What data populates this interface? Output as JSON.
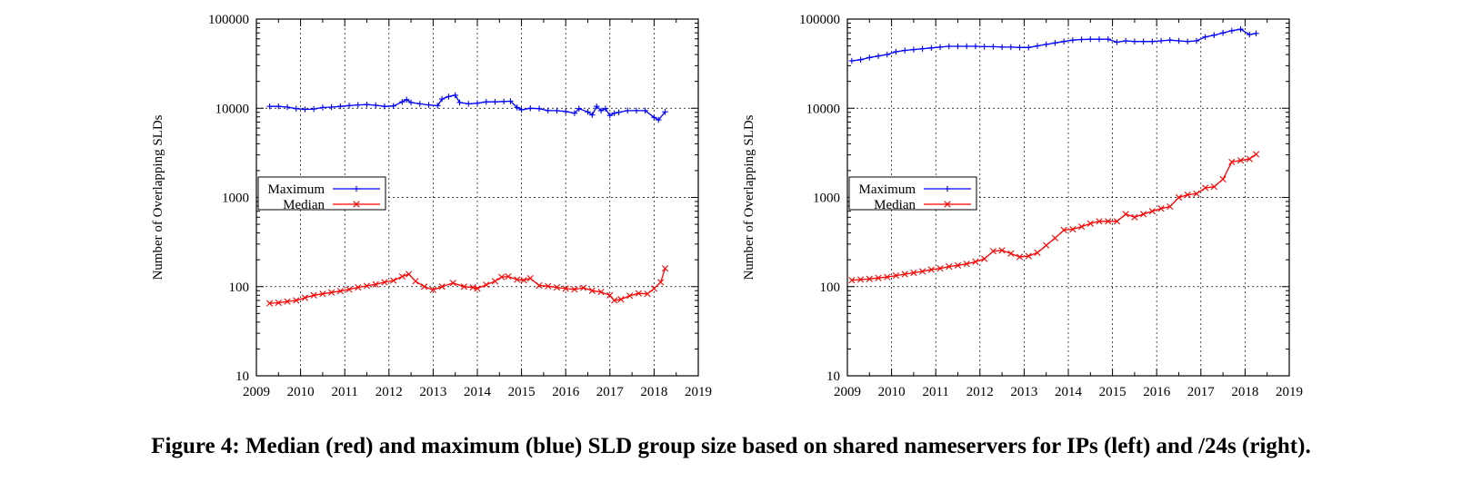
{
  "caption": "Figure 4: Median (red) and maximum (blue) SLD group size based on shared nameservers for IPs (left) and /24s (right).",
  "colors": {
    "maximum": "#0000ff",
    "median": "#ff0000",
    "axis": "#000000",
    "grid": "#000000"
  },
  "chart_data": [
    {
      "type": "line",
      "panel": "left",
      "title": "",
      "xlabel": "",
      "ylabel": "Number of Overlapping SLDs",
      "xlim": [
        2009,
        2019
      ],
      "ylim": [
        10,
        100000
      ],
      "yscale": "log",
      "grid": true,
      "legend_position": "left",
      "x_ticks": [
        "2009",
        "2010",
        "2011",
        "2012",
        "2013",
        "2014",
        "2015",
        "2016",
        "2017",
        "2018",
        "2019"
      ],
      "y_ticks": [
        "10",
        "100",
        "1000",
        "10000",
        "100000"
      ],
      "series": [
        {
          "name": "Maximum",
          "color": "#0000ff",
          "marker": "+",
          "x": [
            2009.3,
            2009.5,
            2009.7,
            2009.9,
            2010.1,
            2010.3,
            2010.5,
            2010.7,
            2010.9,
            2011.1,
            2011.3,
            2011.5,
            2011.7,
            2011.9,
            2012.1,
            2012.3,
            2012.4,
            2012.5,
            2012.7,
            2012.9,
            2013.1,
            2013.2,
            2013.35,
            2013.5,
            2013.6,
            2013.8,
            2014.0,
            2014.2,
            2014.4,
            2014.6,
            2014.75,
            2014.9,
            2015.0,
            2015.2,
            2015.4,
            2015.6,
            2015.8,
            2016.0,
            2016.2,
            2016.3,
            2016.5,
            2016.6,
            2016.7,
            2016.8,
            2016.9,
            2017.0,
            2017.1,
            2017.2,
            2017.4,
            2017.6,
            2017.8,
            2018.0,
            2018.1,
            2018.25
          ],
          "y": [
            10500,
            10500,
            10300,
            9900,
            9700,
            9800,
            10200,
            10300,
            10500,
            10700,
            10900,
            11000,
            10800,
            10500,
            10600,
            11800,
            12500,
            11600,
            11200,
            10900,
            10700,
            12700,
            13500,
            14000,
            11600,
            11200,
            11400,
            11800,
            11800,
            11900,
            12000,
            10200,
            9600,
            10000,
            9900,
            9400,
            9400,
            9200,
            8800,
            9900,
            9100,
            8400,
            10500,
            9400,
            9900,
            8300,
            8800,
            9000,
            9400,
            9400,
            9400,
            7900,
            7400,
            9100
          ]
        },
        {
          "name": "Median",
          "color": "#ff0000",
          "marker": "x",
          "x": [
            2009.3,
            2009.5,
            2009.7,
            2009.9,
            2010.1,
            2010.3,
            2010.5,
            2010.7,
            2010.9,
            2011.1,
            2011.3,
            2011.5,
            2011.7,
            2011.9,
            2012.1,
            2012.3,
            2012.45,
            2012.6,
            2012.8,
            2013.0,
            2013.2,
            2013.45,
            2013.7,
            2013.9,
            2014.0,
            2014.2,
            2014.4,
            2014.55,
            2014.7,
            2014.9,
            2015.05,
            2015.2,
            2015.4,
            2015.6,
            2015.8,
            2016.0,
            2016.2,
            2016.4,
            2016.6,
            2016.8,
            2017.0,
            2017.1,
            2017.25,
            2017.45,
            2017.65,
            2017.85,
            2018.0,
            2018.15,
            2018.25
          ],
          "y": [
            65,
            66,
            68,
            70,
            75,
            80,
            83,
            86,
            89,
            93,
            98,
            102,
            106,
            112,
            117,
            130,
            138,
            115,
            100,
            92,
            100,
            110,
            100,
            98,
            95,
            105,
            115,
            128,
            130,
            120,
            118,
            124,
            103,
            101,
            98,
            95,
            93,
            97,
            90,
            87,
            80,
            70,
            72,
            79,
            84,
            83,
            95,
            112,
            160
          ]
        }
      ]
    },
    {
      "type": "line",
      "panel": "right",
      "title": "",
      "xlabel": "",
      "ylabel": "Number of Overlapping SLDs",
      "xlim": [
        2009,
        2019
      ],
      "ylim": [
        10,
        100000
      ],
      "yscale": "log",
      "grid": true,
      "legend_position": "left",
      "x_ticks": [
        "2009",
        "2010",
        "2011",
        "2012",
        "2013",
        "2014",
        "2015",
        "2016",
        "2017",
        "2018",
        "2019"
      ],
      "y_ticks": [
        "10",
        "100",
        "1000",
        "10000",
        "100000"
      ],
      "series": [
        {
          "name": "Maximum",
          "color": "#0000ff",
          "marker": "+",
          "x": [
            2009.1,
            2009.3,
            2009.5,
            2009.7,
            2009.9,
            2010.1,
            2010.3,
            2010.5,
            2010.7,
            2010.9,
            2011.1,
            2011.3,
            2011.5,
            2011.7,
            2011.9,
            2012.1,
            2012.3,
            2012.5,
            2012.7,
            2012.9,
            2013.1,
            2013.3,
            2013.5,
            2013.7,
            2013.9,
            2014.1,
            2014.3,
            2014.5,
            2014.7,
            2014.9,
            2015.1,
            2015.3,
            2015.5,
            2015.7,
            2015.9,
            2016.1,
            2016.3,
            2016.5,
            2016.7,
            2016.9,
            2017.1,
            2017.3,
            2017.5,
            2017.7,
            2017.9,
            2018.1,
            2018.25
          ],
          "y": [
            34000,
            35000,
            37000,
            38500,
            40000,
            43000,
            44500,
            45500,
            46500,
            47500,
            48500,
            49500,
            49500,
            49500,
            49500,
            49000,
            49000,
            48500,
            48500,
            48000,
            48000,
            50000,
            52000,
            54000,
            56000,
            58000,
            59000,
            59500,
            59500,
            59500,
            55000,
            57000,
            56000,
            56000,
            56000,
            57000,
            58000,
            57000,
            56000,
            57000,
            63000,
            66000,
            70000,
            74000,
            77000,
            67000,
            69000
          ]
        },
        {
          "name": "Median",
          "color": "#ff0000",
          "marker": "x",
          "x": [
            2009.1,
            2009.3,
            2009.5,
            2009.7,
            2009.9,
            2010.1,
            2010.3,
            2010.5,
            2010.7,
            2010.9,
            2011.1,
            2011.3,
            2011.5,
            2011.7,
            2011.9,
            2012.1,
            2012.3,
            2012.5,
            2012.7,
            2012.9,
            2013.1,
            2013.3,
            2013.5,
            2013.7,
            2013.9,
            2014.1,
            2014.3,
            2014.5,
            2014.7,
            2014.9,
            2015.1,
            2015.3,
            2015.5,
            2015.7,
            2015.9,
            2016.1,
            2016.3,
            2016.5,
            2016.7,
            2016.9,
            2017.1,
            2017.3,
            2017.5,
            2017.7,
            2017.9,
            2018.1,
            2018.25
          ],
          "y": [
            118,
            120,
            122,
            125,
            128,
            133,
            138,
            143,
            148,
            155,
            160,
            168,
            173,
            180,
            190,
            205,
            250,
            255,
            235,
            215,
            220,
            240,
            290,
            350,
            430,
            440,
            470,
            510,
            540,
            540,
            540,
            650,
            600,
            650,
            700,
            750,
            790,
            1000,
            1070,
            1100,
            1280,
            1320,
            1600,
            2500,
            2600,
            2700,
            3050
          ]
        }
      ]
    }
  ]
}
